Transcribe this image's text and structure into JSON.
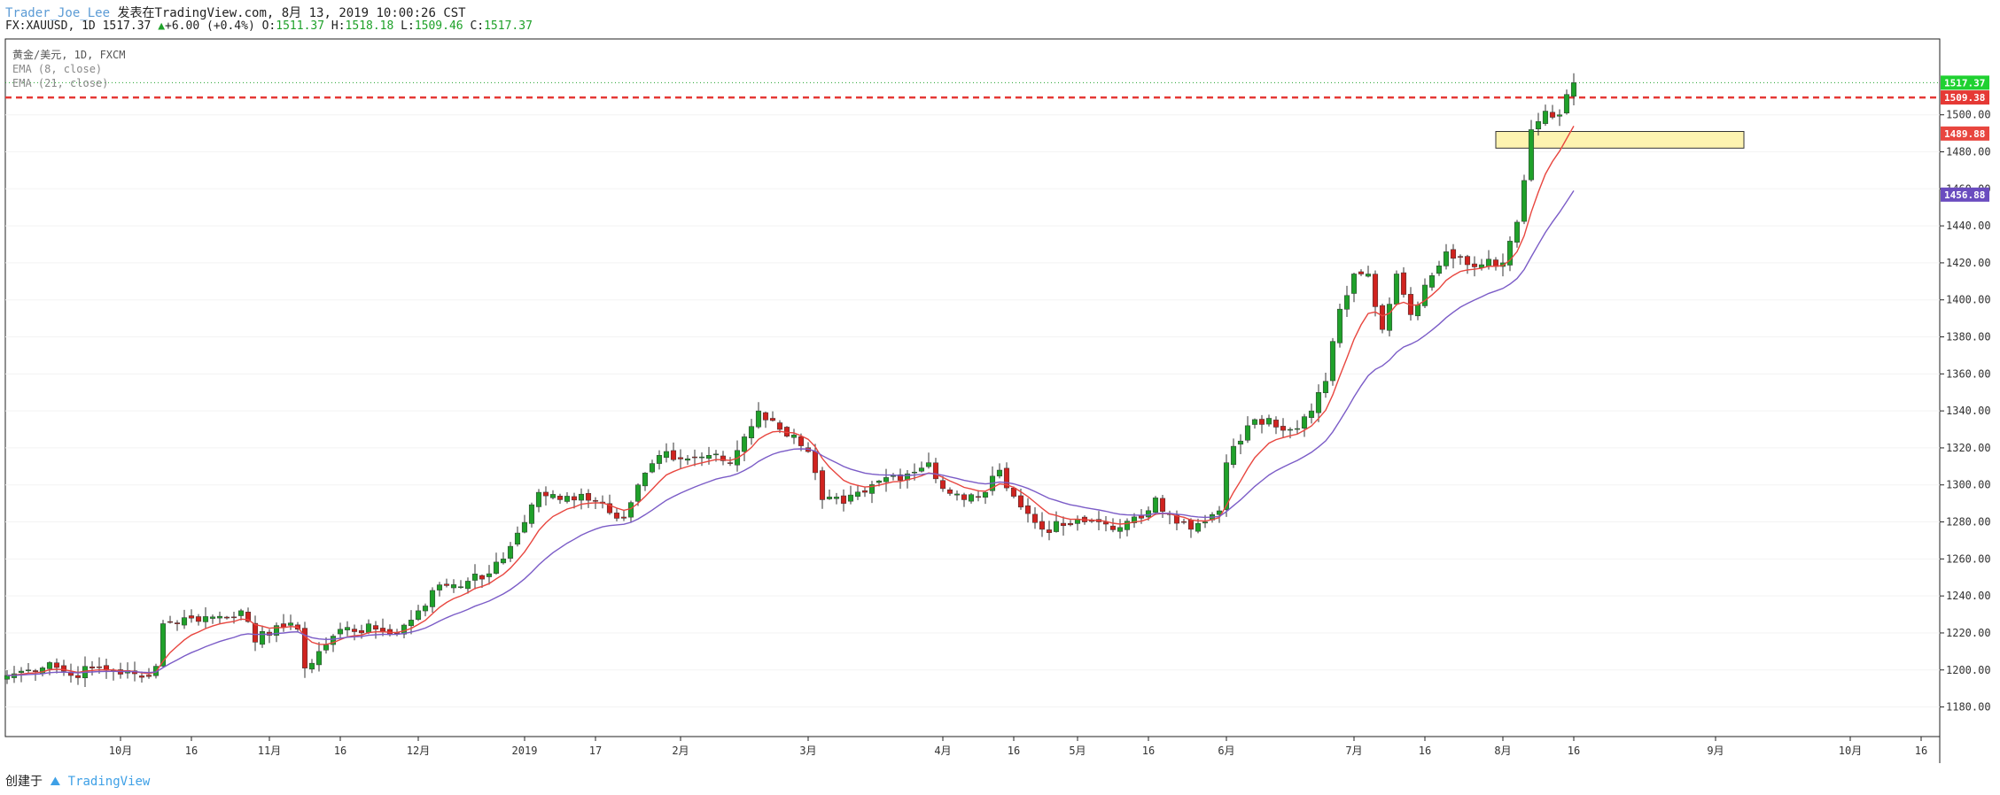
{
  "header": {
    "author": "Trader_Joe_Lee",
    "published": "发表在TradingView.com, 8月 13, 2019 10:00:26 CST",
    "symbol": "FX:XAUUSD, 1D 1517.37",
    "change": "+6.00 (+0.4%)",
    "ohlc_o_label": "O:",
    "ohlc_o": "1511.37",
    "ohlc_h_label": "H:",
    "ohlc_h": "1518.18",
    "ohlc_l_label": "L:",
    "ohlc_l": "1509.46",
    "ohlc_c_label": "C:",
    "ohlc_c": "1517.37"
  },
  "legend": {
    "symbol": "黄金/美元, 1D, FXCM",
    "ema8": "EMA (8, close)",
    "ema21": "EMA (21, close)"
  },
  "footer": {
    "created": "创建于",
    "brand": "TradingView"
  },
  "colors": {
    "up": "#1fa12a",
    "down": "#d0231f",
    "ema8": "#e8463f",
    "ema21": "#7b5cc7",
    "price_tag": "#1fd131",
    "red_line": "#e53935",
    "zone_fill": "#fdf3b0",
    "zone_border": "#333333",
    "tag_ema21": "#6a4cbf",
    "grid": "#e0e0e0"
  },
  "price_tags": {
    "current": "1517.37",
    "red_line": "1509.38",
    "ema8": "1489.88",
    "ema21": "1456.88"
  },
  "chart_data": {
    "type": "candlestick",
    "title": "黄金/美元, 1D, FXCM",
    "y_ticks": [
      "1180.00",
      "1200.00",
      "1220.00",
      "1240.00",
      "1260.00",
      "1280.00",
      "1300.00",
      "1320.00",
      "1340.00",
      "1360.00",
      "1380.00",
      "1400.00",
      "1420.00",
      "1440.00",
      "1460.00",
      "1480.00",
      "1500.00"
    ],
    "ylim": [
      1164,
      1541
    ],
    "x_ticks": [
      "10月",
      "16",
      "11月",
      "16",
      "12月",
      "2019",
      "17",
      "2月",
      "3月",
      "4月",
      "16",
      "5月",
      "16",
      "6月",
      "7月",
      "16",
      "8月",
      "16",
      "9月",
      "10月",
      "16"
    ],
    "x_tick_bar_index": [
      16,
      26,
      37,
      47,
      58,
      73,
      83,
      95,
      113,
      132,
      142,
      151,
      161,
      172,
      190,
      200,
      211,
      221,
      241,
      260,
      270
    ],
    "bar_count": 279,
    "resistance_line": 1509.38,
    "current_price": 1517.37,
    "zone": {
      "top": 1491,
      "bottom": 1482,
      "start_bar": 210,
      "end_bar": 245
    },
    "anchors": [
      [
        0,
        1197
      ],
      [
        3,
        1200
      ],
      [
        6,
        1204
      ],
      [
        9,
        1197
      ],
      [
        12,
        1201
      ],
      [
        15,
        1200
      ],
      [
        19,
        1196
      ],
      [
        21,
        1202
      ],
      [
        22,
        1225
      ],
      [
        26,
        1228
      ],
      [
        30,
        1229
      ],
      [
        33,
        1232
      ],
      [
        35,
        1215
      ],
      [
        38,
        1224
      ],
      [
        41,
        1222
      ],
      [
        42,
        1201
      ],
      [
        44,
        1210
      ],
      [
        47,
        1222
      ],
      [
        52,
        1222
      ],
      [
        55,
        1220
      ],
      [
        58,
        1232
      ],
      [
        61,
        1246
      ],
      [
        65,
        1248
      ],
      [
        68,
        1252
      ],
      [
        70,
        1260
      ],
      [
        72,
        1274
      ],
      [
        75,
        1296
      ],
      [
        78,
        1292
      ],
      [
        81,
        1295
      ],
      [
        84,
        1290
      ],
      [
        87,
        1282
      ],
      [
        89,
        1300
      ],
      [
        92,
        1316
      ],
      [
        95,
        1314
      ],
      [
        99,
        1316
      ],
      [
        102,
        1312
      ],
      [
        104,
        1326
      ],
      [
        106,
        1340
      ],
      [
        109,
        1330
      ],
      [
        111,
        1327
      ],
      [
        113,
        1318
      ],
      [
        115,
        1292
      ],
      [
        118,
        1290
      ],
      [
        121,
        1296
      ],
      [
        124,
        1304
      ],
      [
        127,
        1306
      ],
      [
        130,
        1312
      ],
      [
        132,
        1298
      ],
      [
        135,
        1292
      ],
      [
        138,
        1296
      ],
      [
        140,
        1308
      ],
      [
        143,
        1288
      ],
      [
        146,
        1276
      ],
      [
        149,
        1278
      ],
      [
        152,
        1280
      ],
      [
        154,
        1280
      ],
      [
        157,
        1277
      ],
      [
        160,
        1282
      ],
      [
        162,
        1293
      ],
      [
        164,
        1284
      ],
      [
        167,
        1276
      ],
      [
        169,
        1280
      ],
      [
        171,
        1286
      ],
      [
        172,
        1312
      ],
      [
        175,
        1332
      ],
      [
        178,
        1336
      ],
      [
        181,
        1330
      ],
      [
        184,
        1340
      ],
      [
        186,
        1356
      ],
      [
        188,
        1395
      ],
      [
        190,
        1414
      ],
      [
        192,
        1414
      ],
      [
        194,
        1384
      ],
      [
        196,
        1414
      ],
      [
        198,
        1392
      ],
      [
        200,
        1408
      ],
      [
        203,
        1426
      ],
      [
        206,
        1419
      ],
      [
        209,
        1422
      ],
      [
        211,
        1420
      ],
      [
        213,
        1442
      ],
      [
        215,
        1492
      ],
      [
        217,
        1502
      ],
      [
        219,
        1500
      ],
      [
        220,
        1511
      ],
      [
        221,
        1517.37
      ]
    ]
  }
}
